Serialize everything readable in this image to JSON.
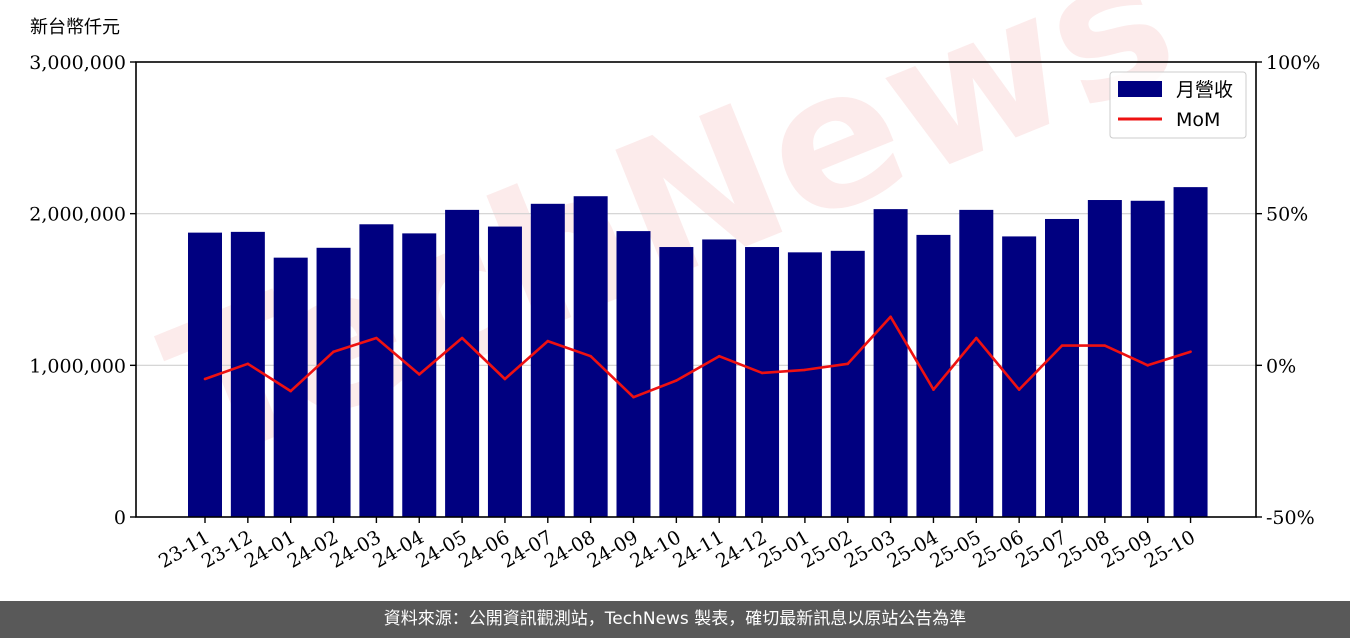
{
  "colors": {
    "bar": "#000080",
    "line": "#ee1111",
    "footer_bg": "#595959",
    "grid": "#d0d0d0"
  },
  "chart_data": {
    "type": "bar",
    "title": "",
    "left_axis_unit": "新台幣仟元",
    "left_axis": {
      "range": [
        0,
        3000000
      ],
      "ticks": [
        0,
        1000000,
        2000000,
        3000000
      ],
      "tick_labels": [
        "0",
        "1,000,000",
        "2,000,000",
        "3,000,000"
      ]
    },
    "right_axis": {
      "range": [
        -50,
        100
      ],
      "ticks": [
        -50,
        0,
        50,
        100
      ],
      "tick_labels": [
        "-50%",
        "0%",
        "50%",
        "100%"
      ]
    },
    "grid": "horizontal",
    "legend_position": "top-right",
    "categories": [
      "23-11",
      "23-12",
      "24-01",
      "24-02",
      "24-03",
      "24-04",
      "24-05",
      "24-06",
      "24-07",
      "24-08",
      "24-09",
      "24-10",
      "24-11",
      "24-12",
      "25-01",
      "25-02",
      "25-03",
      "25-04",
      "25-05",
      "25-06",
      "25-07",
      "25-08",
      "25-09",
      "25-10"
    ],
    "series": [
      {
        "name": "月營收",
        "type": "bar",
        "axis": "left",
        "values": [
          1875000,
          1880000,
          1710000,
          1775000,
          1930000,
          1870000,
          2025000,
          1915000,
          2065000,
          2115000,
          1885000,
          1780000,
          1830000,
          1780000,
          1745000,
          1755000,
          2030000,
          1860000,
          2025000,
          1850000,
          1965000,
          2090000,
          2085000,
          2175000
        ]
      },
      {
        "name": "MoM",
        "type": "line",
        "axis": "right",
        "values": [
          -4.5,
          0.5,
          -8.5,
          4.5,
          9.0,
          -3.0,
          9.0,
          -4.5,
          8.0,
          3.0,
          -10.5,
          -5.0,
          3.0,
          -2.5,
          -1.5,
          0.5,
          16.0,
          -8.0,
          9.0,
          -8.0,
          6.5,
          6.5,
          0.0,
          4.5
        ]
      }
    ],
    "watermark": "TechNews"
  },
  "footer": {
    "source_text": "資料來源：公開資訊觀測站，TechNews 製表，確切最新訊息以原站公告為準"
  }
}
